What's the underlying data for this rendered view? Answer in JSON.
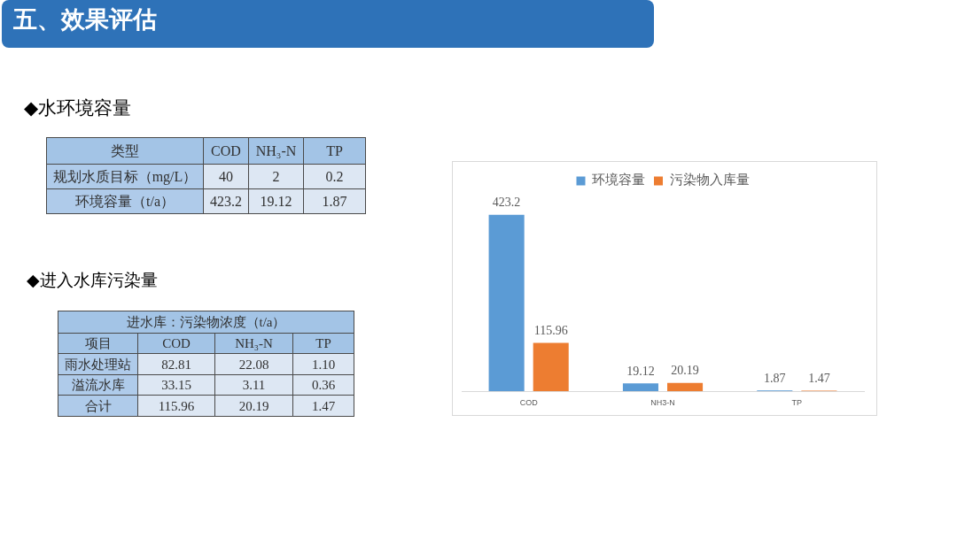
{
  "chart_data": [
    {
      "type": "other",
      "title": "五、效果评估"
    },
    {
      "type": "heatmap",
      "title": "◆水环境容量",
      "ylabel": "类型",
      "categories": [
        "COD",
        "NH₃-N",
        "TP"
      ],
      "y_categories": [
        "规划水质目标（mg/L）",
        "环境容量（t/a）"
      ],
      "cells": [
        [
          40,
          2,
          0.2
        ],
        [
          423.2,
          19.12,
          1.87
        ]
      ],
      "data_labels": true
    },
    {
      "type": "heatmap",
      "title": "◆进入水库污染量",
      "subtitle": "进水库：污染物浓度（t/a）",
      "ylabel": "项目",
      "categories": [
        "COD",
        "NH₃-N",
        "TP"
      ],
      "y_categories": [
        "雨水处理站",
        "溢流水库",
        "合计"
      ],
      "cells": [
        [
          82.81,
          22.08,
          1.1
        ],
        [
          33.15,
          3.11,
          0.36
        ],
        [
          115.96,
          20.19,
          1.47
        ]
      ],
      "cell_labels": [
        [
          "82.81",
          "22.08",
          "1.10"
        ],
        [
          "33.15",
          "3.11",
          "0.36"
        ],
        [
          "115.96",
          "20.19",
          "1.47"
        ]
      ]
    },
    {
      "type": "bar",
      "categories": [
        "COD",
        "NH3-N",
        "TP"
      ],
      "series": [
        {
          "name": "环境容量",
          "color": "#5b9bd5",
          "values": [
            423.2,
            19.12,
            1.87
          ]
        },
        {
          "name": "污染物入库量",
          "color": "#ed7d31",
          "values": [
            115.96,
            20.19,
            1.47
          ]
        }
      ],
      "data_labels": true,
      "legend": "top",
      "tick_labels": "x"
    }
  ]
}
